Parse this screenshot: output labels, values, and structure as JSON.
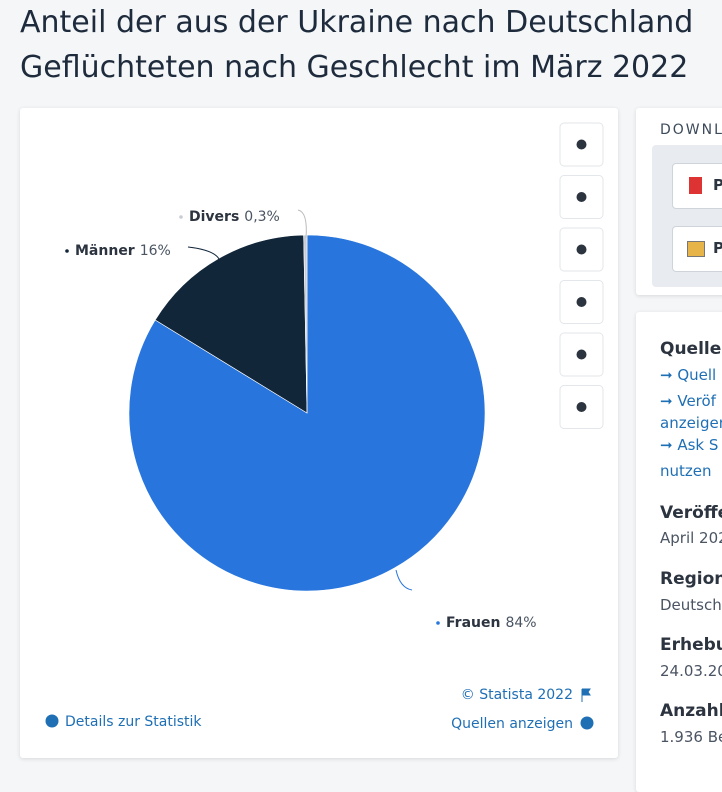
{
  "chart_data": {
    "type": "pie",
    "title": "Anteil der aus der Ukraine nach Deutschland Geflüchteten nach Geschlecht im März 2022",
    "categories": [
      "Frauen",
      "Männer",
      "Divers"
    ],
    "values": [
      84,
      16,
      0.3
    ],
    "value_labels": [
      "84%",
      "16%",
      "0,3%"
    ],
    "colors": [
      "#2876dd",
      "#12263a",
      "#c9cdd2"
    ]
  },
  "chart_footer": {
    "copyright": "© Statista 2022",
    "details": "Details zur Statistik",
    "sources": "Quellen anzeigen"
  },
  "sidebar": {
    "download_heading": "DOWNL",
    "download_buttons": [
      "P",
      "P"
    ],
    "source_heading": "Quelle",
    "source_links": [
      "Quell",
      "Veröf",
      "anzeigen",
      "Ask S",
      "nutzen"
    ],
    "fields": [
      {
        "label": "Veröffe",
        "value": "April 202"
      },
      {
        "label": "Region",
        "value": "Deutsch"
      },
      {
        "label": "Erhebu",
        "value": "24.03.20"
      },
      {
        "label": "Anzahl",
        "value": "1.936 Be"
      }
    ]
  }
}
